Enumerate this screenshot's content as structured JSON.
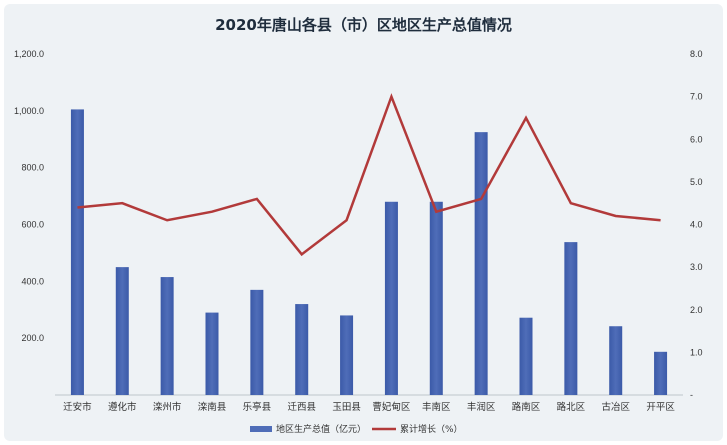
{
  "chart_data": {
    "type": "bar+line",
    "title": "2020年唐山各县（市）区地区生产总值情况",
    "categories": [
      "迁安市",
      "遵化市",
      "滦州市",
      "滦南县",
      "乐亭县",
      "迁西县",
      "玉田县",
      "曹妃甸区",
      "丰南区",
      "丰润区",
      "路南区",
      "路北区",
      "古冶区",
      "开平区"
    ],
    "series": [
      {
        "name": "地区生产总值（亿元）",
        "type": "bar",
        "axis": "left",
        "color": "#4f6db8",
        "values": [
          1005,
          450,
          415,
          290,
          370,
          320,
          280,
          680,
          680,
          925,
          272,
          538,
          242,
          152
        ]
      },
      {
        "name": "累计增长（%）",
        "type": "line",
        "axis": "right",
        "color": "#b23a3a",
        "values": [
          4.4,
          4.5,
          4.1,
          4.3,
          4.6,
          3.3,
          4.1,
          7.0,
          4.3,
          4.6,
          6.5,
          4.5,
          4.2,
          4.1
        ]
      }
    ],
    "y_left": {
      "ylim": [
        0,
        1200
      ],
      "ticks": [
        "200.0",
        "400.0",
        "600.0",
        "800.0",
        "1,000.0",
        "1,200.0"
      ],
      "tick_values": [
        200,
        400,
        600,
        800,
        1000,
        1200
      ]
    },
    "y_right": {
      "ylim": [
        0,
        8
      ],
      "ticks": [
        "-",
        "1.0",
        "2.0",
        "3.0",
        "4.0",
        "5.0",
        "6.0",
        "7.0",
        "8.0"
      ],
      "tick_values": [
        0,
        1,
        2,
        3,
        4,
        5,
        6,
        7,
        8
      ]
    },
    "legend": {
      "placement": "bottom",
      "items": [
        "地区生产总值（亿元）",
        "累计增长（%）"
      ]
    },
    "grid": false
  }
}
